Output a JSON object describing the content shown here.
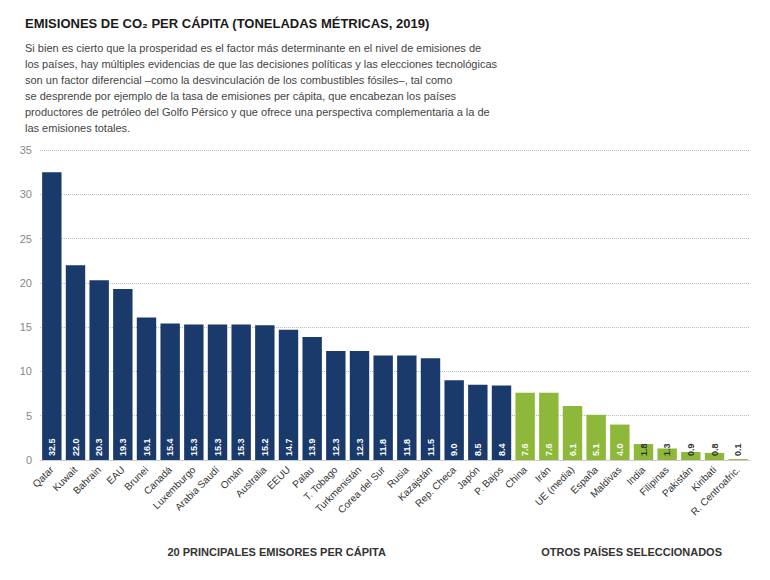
{
  "chart_data": {
    "type": "bar",
    "title": "EMISIONES DE CO₂ PER CÁPITA (TONELADAS MÉTRICAS, 2019)",
    "subtitle": "Si bien es cierto que la prosperidad es el factor más determinante en el nivel de emisiones de\nlos países, hay múltiples evidencias de que las decisiones políticas y las elecciones tecnológicas\nson un factor diferencial –como la desvinculación de los combustibles fósiles–, tal como\nse desprende por ejemplo de la tasa de emisiones per cápita, que encabezan los países\nproductores de petróleo del Golfo Pérsico y que ofrece una perspectiva complementaria a la de\nlas emisiones totales.",
    "categories": [
      "Qatar",
      "Kuwait",
      "Bahrain",
      "EAU",
      "Brunei",
      "Canadá",
      "Luxemburgo",
      "Arabia Saudí",
      "Omán",
      "Australia",
      "EEUU",
      "Palau",
      "T. Tobago",
      "Turkmenistán",
      "Corea del Sur",
      "Rusia",
      "Kazajstán",
      "Rep. Checa",
      "Japón",
      "P. Bajos",
      "China",
      "Irán",
      "UE (media)",
      "España",
      "Maldivas",
      "India",
      "Filipinas",
      "Pakistán",
      "Kiribati",
      "R. Centroafric."
    ],
    "values": [
      32.5,
      22.0,
      20.3,
      19.3,
      16.1,
      15.4,
      15.3,
      15.3,
      15.3,
      15.2,
      14.7,
      13.9,
      12.3,
      12.3,
      11.8,
      11.8,
      11.5,
      9.0,
      8.5,
      8.4,
      7.6,
      7.6,
      6.1,
      5.1,
      4.0,
      1.8,
      1.3,
      0.9,
      0.8,
      0.1
    ],
    "value_labels": [
      "32.5",
      "22.0",
      "20.3",
      "19.3",
      "16.1",
      "15.4",
      "15.3",
      "15.3",
      "15.3",
      "15.2",
      "14.7",
      "13.9",
      "12.3",
      "12.3",
      "11.8",
      "11.8",
      "11.5",
      "9.0",
      "8.5",
      "8.4",
      "7.6",
      "7.6",
      "6.1",
      "5.1",
      "4.0",
      "1.8",
      "1.3",
      "0.9",
      "0.8",
      "0.1"
    ],
    "colors": [
      "#1a3a6b",
      "#1a3a6b",
      "#1a3a6b",
      "#1a3a6b",
      "#1a3a6b",
      "#1a3a6b",
      "#1a3a6b",
      "#1a3a6b",
      "#1a3a6b",
      "#1a3a6b",
      "#1a3a6b",
      "#1a3a6b",
      "#1a3a6b",
      "#1a3a6b",
      "#1a3a6b",
      "#1a3a6b",
      "#1a3a6b",
      "#1a3a6b",
      "#1a3a6b",
      "#1a3a6b",
      "#8db83a",
      "#8db83a",
      "#8db83a",
      "#8db83a",
      "#8db83a",
      "#8db83a",
      "#8db83a",
      "#8db83a",
      "#8db83a",
      "#8db83a"
    ],
    "annotations": [
      "20 PRINCIPALES EMISORES PER CÁPITA",
      "OTROS PAÍSES SELECCIONADOS"
    ],
    "ylim": [
      0,
      35
    ],
    "yticks": [
      0,
      5,
      10,
      15,
      20,
      25,
      30,
      35
    ],
    "grid": true,
    "data_labels": true
  }
}
